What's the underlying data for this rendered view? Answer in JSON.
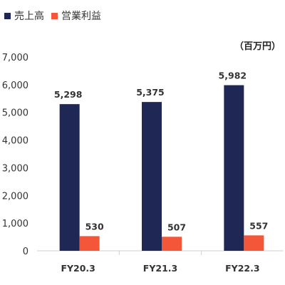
{
  "chart_data": {
    "type": "bar",
    "categories": [
      "FY20.3",
      "FY21.3",
      "FY22.3"
    ],
    "series": [
      {
        "name": "売上高",
        "values": [
          5298,
          5375,
          5982
        ],
        "labels": [
          "5,298",
          "5,375",
          "5,982"
        ],
        "color": "#1f2855"
      },
      {
        "name": "営業利益",
        "values": [
          530,
          507,
          557
        ],
        "labels": [
          "530",
          "507",
          "557"
        ],
        "color": "#f4563a"
      }
    ],
    "unit_label": "（百万円）",
    "ylim": [
      0,
      7000
    ],
    "yticks": [
      0,
      1000,
      2000,
      3000,
      4000,
      5000,
      6000,
      7000
    ],
    "ytick_labels": [
      "0",
      "1,000",
      "2,000",
      "3,000",
      "4,000",
      "5,000",
      "6,000",
      "7,000"
    ],
    "grid": false,
    "legend_position": "top-left"
  }
}
